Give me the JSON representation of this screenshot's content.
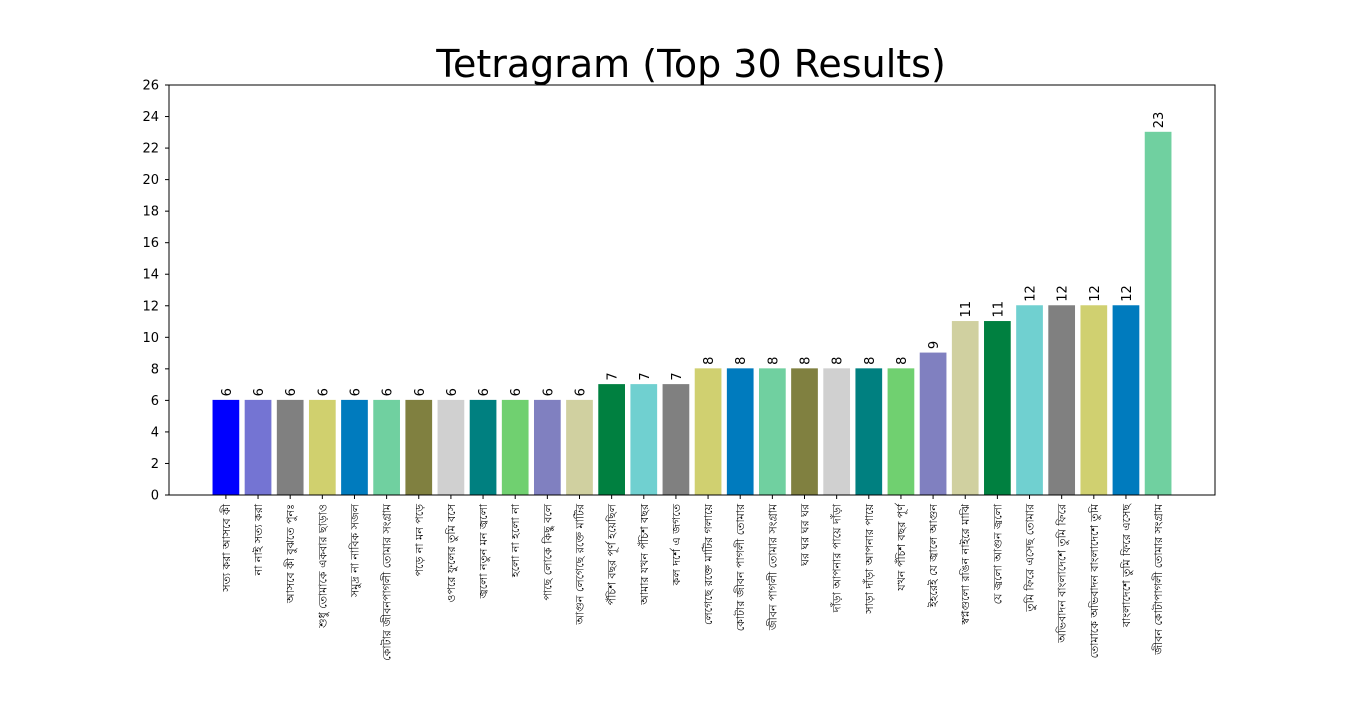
{
  "chart_data": {
    "type": "bar",
    "title": "Tetragram (Top 30 Results)",
    "xlabel": "",
    "ylabel": "",
    "ylim": [
      0,
      26
    ],
    "yticks": [
      0,
      2,
      4,
      6,
      8,
      10,
      12,
      14,
      16,
      18,
      20,
      22,
      24,
      26
    ],
    "grid": false,
    "categories": [
      "সত্য করা আসবে কী",
      "না নাই সত্য করা",
      "আসবে কী বুঝতে পুনঃ",
      "শুধু তোমাকে একবার ছাড়াও",
      "সমুদ্র না নাবিক সজল",
      "কোটার জীবনপাগলী তোমার সংগ্রাম",
      "পড়ে না মন পড়ে",
      "ওপরে ফুলের তুমি বসে",
      "জ্বলো নতুন মন জ্বলো",
      "হলো না হলো না",
      "পাছে লোকে কিছু বলে",
      "আগুন লেগেছে রক্তে মাটির",
      "পঁচিশ বছর পূর্ণ হয়েছিল",
      "আমার যখন পঁচিশ বছর",
      "কল দর্শে এ জগতে",
      "লেগেছে রক্তে মাটির গলায়ে",
      "কোটার জীবন পাগলী তোমার",
      "জীবন পাগলী তোমার সংগ্রাম",
      "ঘর ঘর ঘর ঘর",
      "দাঁড়া আপনার পায়ে দাঁড়া",
      "সাড়া দাঁড়া আপনার পায়ে",
      "যখন পঁচিশ বছর পূর্ণ",
      "ইহরেই যে জ্বালে আগুন",
      "স্বপ্নগুলো রঙিন নাইরে মাঝি",
      "যে জ্বলো আগুন জ্বলো",
      "তুমি ফিরে এসেছ তোমার",
      "অভিবাদন বাংলাদেশে তুমি ফিরে",
      "তোমাকে অভিবাদন বাংলাদেশে তুমি",
      "বাংলাদেশে তুমি ফিরে এসেছ",
      "জীবন কোটাপাগলী তোমার সংগ্রাম"
    ],
    "values": [
      6,
      6,
      6,
      6,
      6,
      6,
      6,
      6,
      6,
      6,
      6,
      6,
      7,
      7,
      7,
      8,
      8,
      8,
      8,
      8,
      8,
      8,
      9,
      11,
      11,
      12,
      12,
      12,
      12,
      23
    ],
    "colors": [
      "#0000ff",
      "#7474d3",
      "#808080",
      "#d0d06e",
      "#007bbe",
      "#70d0a0",
      "#808040",
      "#d0d0d0",
      "#008080",
      "#70d070",
      "#8080c0",
      "#d0d0a0",
      "#008040",
      "#70d0d0",
      "#808080",
      "#d0d070",
      "#007bbe",
      "#70d0a0",
      "#808040",
      "#d0d0d0",
      "#008080",
      "#70d070",
      "#8080c0",
      "#d0d0a0",
      "#008040",
      "#70d0d0",
      "#808080",
      "#d0d070",
      "#007bbe",
      "#70d0a0"
    ]
  }
}
